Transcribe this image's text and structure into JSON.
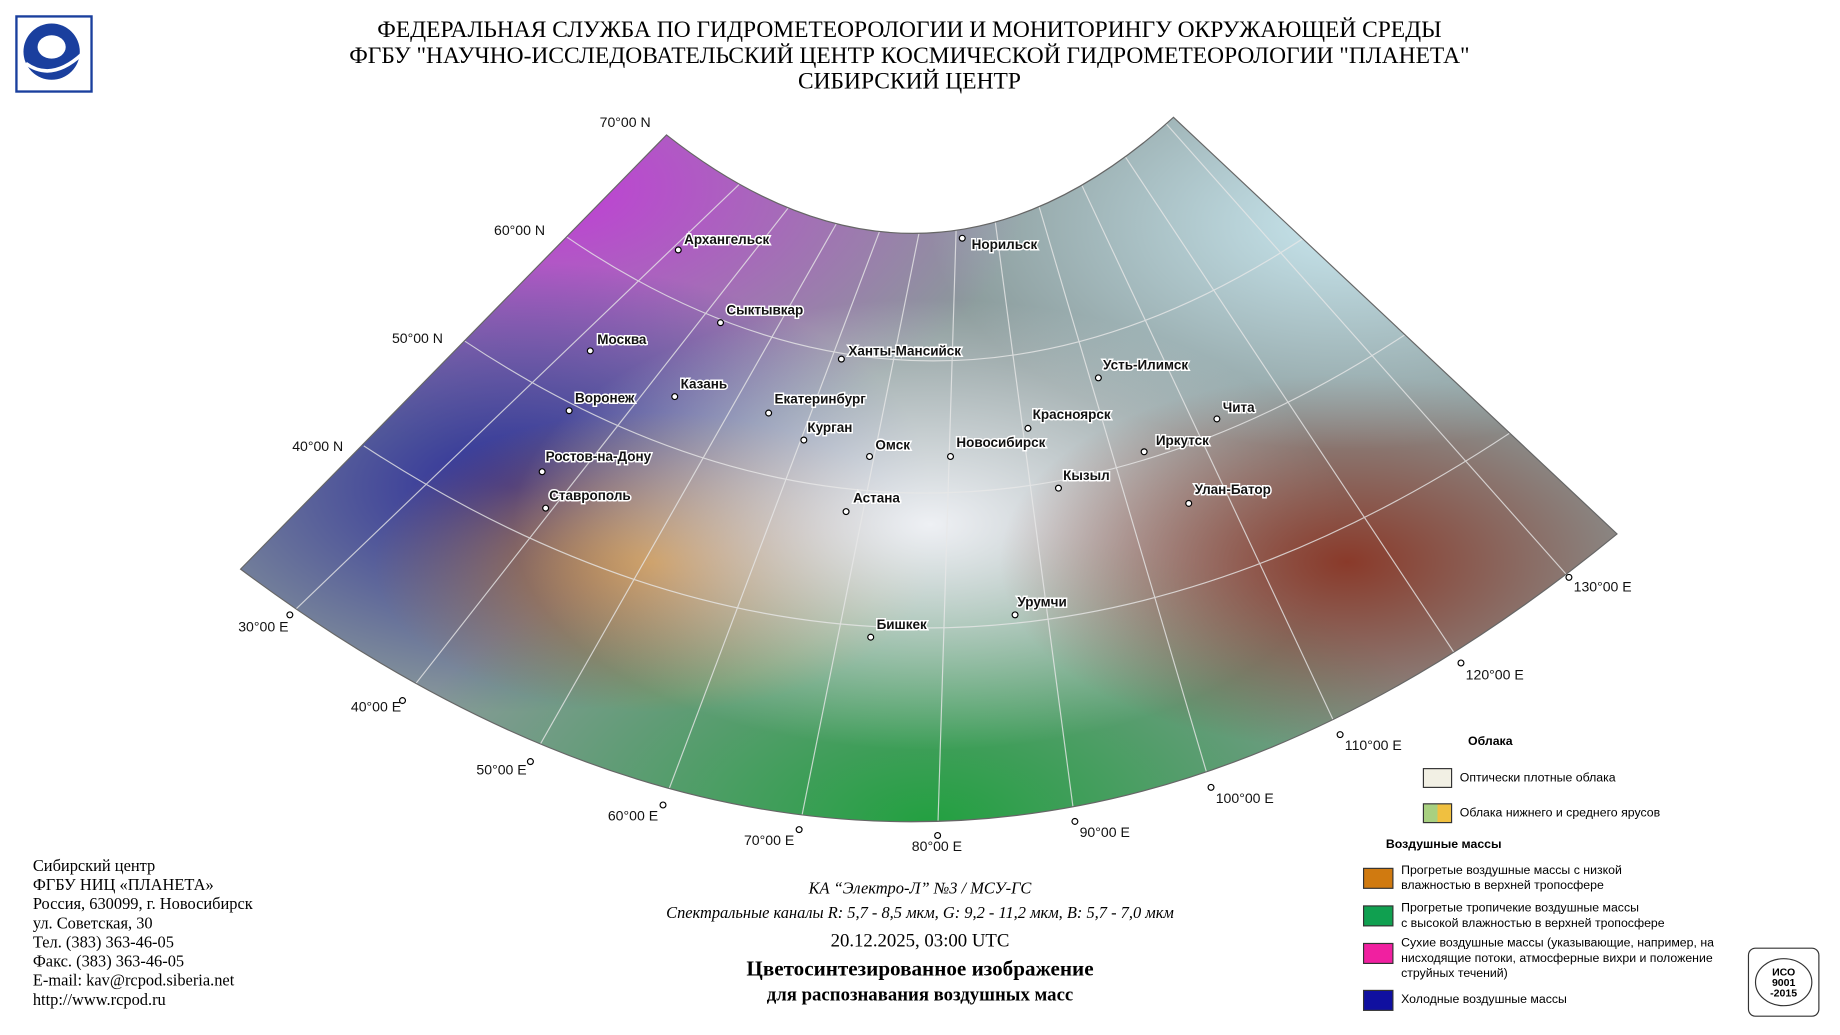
{
  "header": {
    "lines": [
      "ФЕДЕРАЛЬНАЯ СЛУЖБА ПО ГИДРОМЕТЕОРОЛОГИИ И МОНИТОРИНГУ ОКРУЖАЮЩЕЙ СРЕДЫ",
      "ФГБУ \"НАУЧНО-ИССЛЕДОВАТЕЛЬСКИЙ ЦЕНТР КОСМИЧЕСКОЙ ГИДРОМЕТЕОРОЛОГИИ \"ПЛАНЕТА\"",
      "СИБИРСКИЙ ЦЕНТР"
    ]
  },
  "map": {
    "lat_labels": [
      "70°00 N",
      "60°00 N",
      "50°00 N",
      "40°00 N"
    ],
    "lon_labels": [
      "30°00 E",
      "40°00 E",
      "50°00 E",
      "60°00 E",
      "70°00 E",
      "80°00 E",
      "90°00 E",
      "100°00 E",
      "110°00 E",
      "120°00 E",
      "130°00 E"
    ],
    "cities": [
      "Архангельск",
      "Норильск",
      "Сыктывкар",
      "Москва",
      "Ханты-Мансийск",
      "Усть-Илимск",
      "Казань",
      "Воронеж",
      "Екатеринбург",
      "Чита",
      "Красноярск",
      "Курган",
      "Иркутск",
      "Омск",
      "Новосибирск",
      "Ростов-на-Дону",
      "Кызыл",
      "Улан-Батор",
      "Ставрополь",
      "Астана",
      "Урумчи",
      "Бишкек"
    ]
  },
  "legend": {
    "clouds_title": "Облака",
    "clouds": [
      "Оптически плотные облака",
      "Облака нижнего и среднего ярусов"
    ],
    "air_title": "Воздушные массы",
    "air": [
      [
        "Прогретые воздушные массы с низкой",
        "влажностью в верхней тропосфере"
      ],
      [
        "Прогретые тропичекие воздушные массы",
        "с высокой влажностью в верхней тропосфере"
      ],
      [
        "Сухие воздушные массы (указывающие, например, на",
        "нисходящие потоки, атмосферные вихри и положение",
        "струйных течений)"
      ],
      [
        "Холодные воздушные массы"
      ]
    ]
  },
  "footer": {
    "address": [
      "Сибирский центр",
      "ФГБУ НИЦ «ПЛАНЕТА»",
      "Россия, 630099, г. Новосибирск",
      "ул. Советская, 30",
      "Тел. (383) 363-46-05",
      "Факс. (383) 363-46-05",
      "E-mail: kav@rcpod.siberia.net",
      "http://www.rcpod.ru"
    ],
    "satellite": "КА “Электро-Л” №3 / МСУ-ГС",
    "channels": "Спектральные каналы R: 5,7 - 8,5 мкм, G: 9,2 - 11,2 мкм, B: 5,7 - 7,0 мкм",
    "date": "20.12.2025, 03:00 UTC",
    "title": [
      "Цветосинтезированное изображение",
      "для распознавания воздушных масс"
    ]
  },
  "badge": {
    "lines": [
      "ИСО",
      "9001",
      "-2015"
    ]
  }
}
